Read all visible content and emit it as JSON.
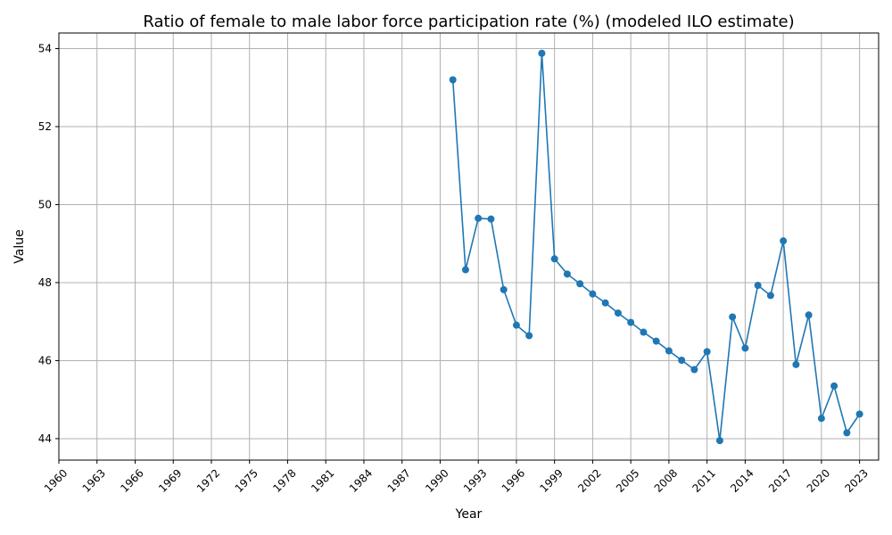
{
  "chart_data": {
    "type": "line",
    "title": "Ratio of female to male labor force participation rate (%) (modeled ILO estimate)",
    "xlabel": "Year",
    "ylabel": "Value",
    "xlim": [
      1960,
      2024.5
    ],
    "ylim": [
      43.45,
      54.4
    ],
    "xticks": [
      1960,
      1963,
      1966,
      1969,
      1972,
      1975,
      1978,
      1981,
      1984,
      1987,
      1990,
      1993,
      1996,
      1999,
      2002,
      2005,
      2008,
      2011,
      2014,
      2017,
      2020,
      2023
    ],
    "yticks": [
      44,
      46,
      48,
      50,
      52,
      54
    ],
    "grid": true,
    "series_color": "#1f77b4",
    "x": [
      1991,
      1992,
      1993,
      1994,
      1995,
      1996,
      1997,
      1998,
      1999,
      2000,
      2001,
      2002,
      2003,
      2004,
      2005,
      2006,
      2007,
      2008,
      2009,
      2010,
      2011,
      2012,
      2013,
      2014,
      2015,
      2016,
      2017,
      2018,
      2019,
      2020,
      2021,
      2022,
      2023
    ],
    "y": [
      53.2,
      48.33,
      49.65,
      49.63,
      47.82,
      46.91,
      46.64,
      53.88,
      48.61,
      48.22,
      47.97,
      47.71,
      47.48,
      47.22,
      46.98,
      46.73,
      46.5,
      46.25,
      46.01,
      45.77,
      46.23,
      43.95,
      47.12,
      46.32,
      47.93,
      47.67,
      49.07,
      45.9,
      47.17,
      44.52,
      45.35,
      44.15,
      44.63
    ]
  }
}
